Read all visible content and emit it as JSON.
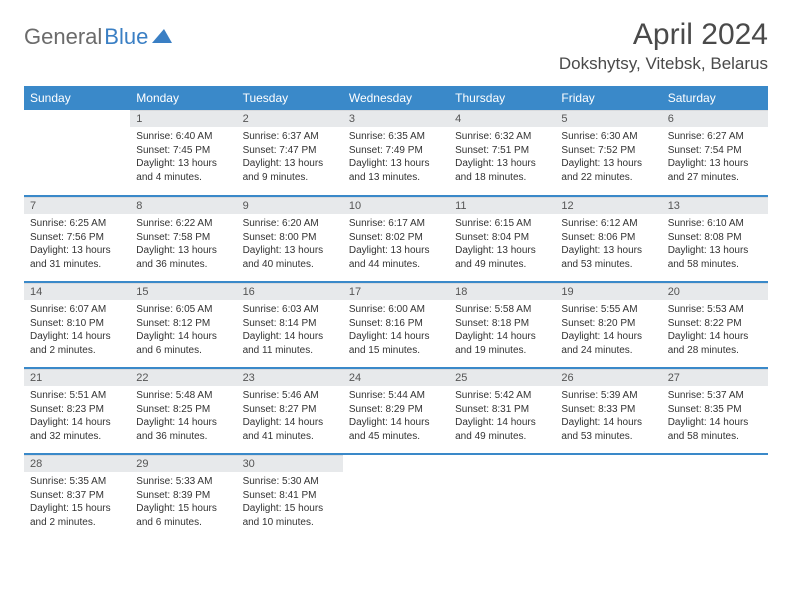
{
  "logo": {
    "text1": "General",
    "text2": "Blue"
  },
  "title": "April 2024",
  "location": "Dokshytsy, Vitebsk, Belarus",
  "colors": {
    "header_bg": "#3a89c9",
    "header_text": "#ffffff",
    "daynum_bg": "#e7e9eb",
    "row_divider": "#3a89c9",
    "logo_gray": "#6b6b6b",
    "logo_blue": "#3a7fc4",
    "body_text": "#333333"
  },
  "weekdays": [
    "Sunday",
    "Monday",
    "Tuesday",
    "Wednesday",
    "Thursday",
    "Friday",
    "Saturday"
  ],
  "weeks": [
    [
      null,
      {
        "n": "1",
        "sr": "Sunrise: 6:40 AM",
        "ss": "Sunset: 7:45 PM",
        "d1": "Daylight: 13 hours",
        "d2": "and 4 minutes."
      },
      {
        "n": "2",
        "sr": "Sunrise: 6:37 AM",
        "ss": "Sunset: 7:47 PM",
        "d1": "Daylight: 13 hours",
        "d2": "and 9 minutes."
      },
      {
        "n": "3",
        "sr": "Sunrise: 6:35 AM",
        "ss": "Sunset: 7:49 PM",
        "d1": "Daylight: 13 hours",
        "d2": "and 13 minutes."
      },
      {
        "n": "4",
        "sr": "Sunrise: 6:32 AM",
        "ss": "Sunset: 7:51 PM",
        "d1": "Daylight: 13 hours",
        "d2": "and 18 minutes."
      },
      {
        "n": "5",
        "sr": "Sunrise: 6:30 AM",
        "ss": "Sunset: 7:52 PM",
        "d1": "Daylight: 13 hours",
        "d2": "and 22 minutes."
      },
      {
        "n": "6",
        "sr": "Sunrise: 6:27 AM",
        "ss": "Sunset: 7:54 PM",
        "d1": "Daylight: 13 hours",
        "d2": "and 27 minutes."
      }
    ],
    [
      {
        "n": "7",
        "sr": "Sunrise: 6:25 AM",
        "ss": "Sunset: 7:56 PM",
        "d1": "Daylight: 13 hours",
        "d2": "and 31 minutes."
      },
      {
        "n": "8",
        "sr": "Sunrise: 6:22 AM",
        "ss": "Sunset: 7:58 PM",
        "d1": "Daylight: 13 hours",
        "d2": "and 36 minutes."
      },
      {
        "n": "9",
        "sr": "Sunrise: 6:20 AM",
        "ss": "Sunset: 8:00 PM",
        "d1": "Daylight: 13 hours",
        "d2": "and 40 minutes."
      },
      {
        "n": "10",
        "sr": "Sunrise: 6:17 AM",
        "ss": "Sunset: 8:02 PM",
        "d1": "Daylight: 13 hours",
        "d2": "and 44 minutes."
      },
      {
        "n": "11",
        "sr": "Sunrise: 6:15 AM",
        "ss": "Sunset: 8:04 PM",
        "d1": "Daylight: 13 hours",
        "d2": "and 49 minutes."
      },
      {
        "n": "12",
        "sr": "Sunrise: 6:12 AM",
        "ss": "Sunset: 8:06 PM",
        "d1": "Daylight: 13 hours",
        "d2": "and 53 minutes."
      },
      {
        "n": "13",
        "sr": "Sunrise: 6:10 AM",
        "ss": "Sunset: 8:08 PM",
        "d1": "Daylight: 13 hours",
        "d2": "and 58 minutes."
      }
    ],
    [
      {
        "n": "14",
        "sr": "Sunrise: 6:07 AM",
        "ss": "Sunset: 8:10 PM",
        "d1": "Daylight: 14 hours",
        "d2": "and 2 minutes."
      },
      {
        "n": "15",
        "sr": "Sunrise: 6:05 AM",
        "ss": "Sunset: 8:12 PM",
        "d1": "Daylight: 14 hours",
        "d2": "and 6 minutes."
      },
      {
        "n": "16",
        "sr": "Sunrise: 6:03 AM",
        "ss": "Sunset: 8:14 PM",
        "d1": "Daylight: 14 hours",
        "d2": "and 11 minutes."
      },
      {
        "n": "17",
        "sr": "Sunrise: 6:00 AM",
        "ss": "Sunset: 8:16 PM",
        "d1": "Daylight: 14 hours",
        "d2": "and 15 minutes."
      },
      {
        "n": "18",
        "sr": "Sunrise: 5:58 AM",
        "ss": "Sunset: 8:18 PM",
        "d1": "Daylight: 14 hours",
        "d2": "and 19 minutes."
      },
      {
        "n": "19",
        "sr": "Sunrise: 5:55 AM",
        "ss": "Sunset: 8:20 PM",
        "d1": "Daylight: 14 hours",
        "d2": "and 24 minutes."
      },
      {
        "n": "20",
        "sr": "Sunrise: 5:53 AM",
        "ss": "Sunset: 8:22 PM",
        "d1": "Daylight: 14 hours",
        "d2": "and 28 minutes."
      }
    ],
    [
      {
        "n": "21",
        "sr": "Sunrise: 5:51 AM",
        "ss": "Sunset: 8:23 PM",
        "d1": "Daylight: 14 hours",
        "d2": "and 32 minutes."
      },
      {
        "n": "22",
        "sr": "Sunrise: 5:48 AM",
        "ss": "Sunset: 8:25 PM",
        "d1": "Daylight: 14 hours",
        "d2": "and 36 minutes."
      },
      {
        "n": "23",
        "sr": "Sunrise: 5:46 AM",
        "ss": "Sunset: 8:27 PM",
        "d1": "Daylight: 14 hours",
        "d2": "and 41 minutes."
      },
      {
        "n": "24",
        "sr": "Sunrise: 5:44 AM",
        "ss": "Sunset: 8:29 PM",
        "d1": "Daylight: 14 hours",
        "d2": "and 45 minutes."
      },
      {
        "n": "25",
        "sr": "Sunrise: 5:42 AM",
        "ss": "Sunset: 8:31 PM",
        "d1": "Daylight: 14 hours",
        "d2": "and 49 minutes."
      },
      {
        "n": "26",
        "sr": "Sunrise: 5:39 AM",
        "ss": "Sunset: 8:33 PM",
        "d1": "Daylight: 14 hours",
        "d2": "and 53 minutes."
      },
      {
        "n": "27",
        "sr": "Sunrise: 5:37 AM",
        "ss": "Sunset: 8:35 PM",
        "d1": "Daylight: 14 hours",
        "d2": "and 58 minutes."
      }
    ],
    [
      {
        "n": "28",
        "sr": "Sunrise: 5:35 AM",
        "ss": "Sunset: 8:37 PM",
        "d1": "Daylight: 15 hours",
        "d2": "and 2 minutes."
      },
      {
        "n": "29",
        "sr": "Sunrise: 5:33 AM",
        "ss": "Sunset: 8:39 PM",
        "d1": "Daylight: 15 hours",
        "d2": "and 6 minutes."
      },
      {
        "n": "30",
        "sr": "Sunrise: 5:30 AM",
        "ss": "Sunset: 8:41 PM",
        "d1": "Daylight: 15 hours",
        "d2": "and 10 minutes."
      },
      null,
      null,
      null,
      null
    ]
  ]
}
